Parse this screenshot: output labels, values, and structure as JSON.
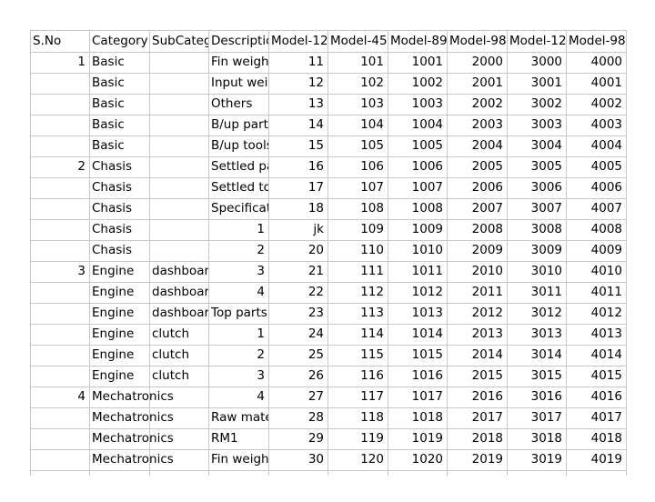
{
  "sheet": {
    "headers": [
      "S.No",
      "Category",
      "SubCategory",
      "Description",
      "Model-12",
      "Model-45",
      "Model-89",
      "Model-98",
      "Model-12",
      "Model-98"
    ],
    "rows": [
      [
        "1",
        "Basic",
        "",
        "Fin weight",
        "11",
        "101",
        "1001",
        "2000",
        "3000",
        "4000"
      ],
      [
        "",
        "Basic",
        "",
        "Input weight",
        "12",
        "102",
        "1002",
        "2001",
        "3001",
        "4001"
      ],
      [
        "",
        "Basic",
        "",
        "Others",
        "13",
        "103",
        "1003",
        "2002",
        "3002",
        "4002"
      ],
      [
        "",
        "Basic",
        "",
        "B/up parts",
        "14",
        "104",
        "1004",
        "2003",
        "3003",
        "4003"
      ],
      [
        "",
        "Basic",
        "",
        "B/up tools",
        "15",
        "105",
        "1005",
        "2004",
        "3004",
        "4004"
      ],
      [
        "2",
        "Chasis",
        "",
        "Settled parts",
        "16",
        "106",
        "1006",
        "2005",
        "3005",
        "4005"
      ],
      [
        "",
        "Chasis",
        "",
        "Settled tools",
        "17",
        "107",
        "1007",
        "2006",
        "3006",
        "4006"
      ],
      [
        "",
        "Chasis",
        "",
        "Specification",
        "18",
        "108",
        "1008",
        "2007",
        "3007",
        "4007"
      ],
      [
        "",
        "Chasis",
        "",
        "1",
        "jk",
        "109",
        "1009",
        "2008",
        "3008",
        "4008"
      ],
      [
        "",
        "Chasis",
        "",
        "2",
        "20",
        "110",
        "1010",
        "2009",
        "3009",
        "4009"
      ],
      [
        "3",
        "Engine",
        "dashboard",
        "3",
        "21",
        "111",
        "1011",
        "2010",
        "3010",
        "4010"
      ],
      [
        "",
        "Engine",
        "dashboard",
        "4",
        "22",
        "112",
        "1012",
        "2011",
        "3011",
        "4011"
      ],
      [
        "",
        "Engine",
        "dashboard",
        "Top parts",
        "23",
        "113",
        "1013",
        "2012",
        "3012",
        "4012"
      ],
      [
        "",
        "Engine",
        "clutch",
        "1",
        "24",
        "114",
        "1014",
        "2013",
        "3013",
        "4013"
      ],
      [
        "",
        "Engine",
        "clutch",
        "2",
        "25",
        "115",
        "1015",
        "2014",
        "3014",
        "4014"
      ],
      [
        "",
        "Engine",
        "clutch",
        "3",
        "26",
        "116",
        "1016",
        "2015",
        "3015",
        "4015"
      ],
      [
        "4",
        "Mechatronics",
        "",
        "4",
        "27",
        "117",
        "1017",
        "2016",
        "3016",
        "4016"
      ],
      [
        "",
        "Mechatronics",
        "",
        "Raw material",
        "28",
        "118",
        "1018",
        "2017",
        "3017",
        "4017"
      ],
      [
        "",
        "Mechatronics",
        "",
        "RM1",
        "29",
        "119",
        "1019",
        "2018",
        "3018",
        "4018"
      ],
      [
        "",
        "Mechatronics",
        "",
        "Fin weight",
        "30",
        "120",
        "1020",
        "2019",
        "3019",
        "4019"
      ]
    ]
  },
  "colors": {
    "grid": "#c8c8c8",
    "text": "#000000",
    "background": "#ffffff"
  }
}
